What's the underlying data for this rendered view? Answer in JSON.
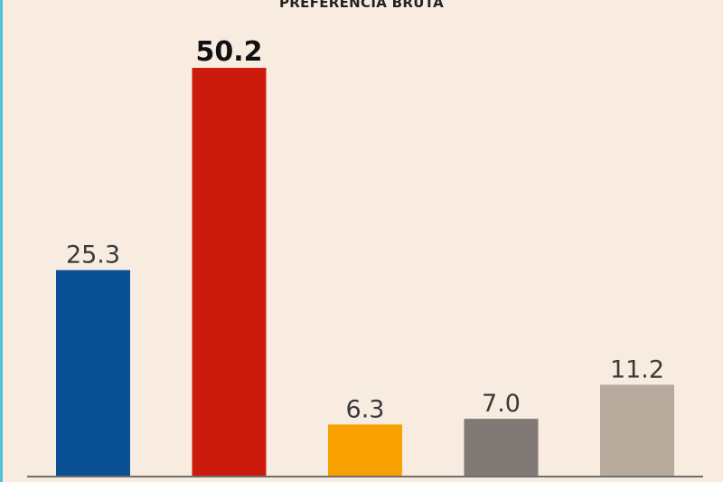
{
  "chart_data": {
    "type": "bar",
    "title": "PREFERENCIA BRUTA",
    "categories": [
      "",
      "",
      "",
      "",
      ""
    ],
    "values": [
      25.3,
      50.2,
      6.3,
      7.0,
      11.2
    ],
    "value_labels": [
      "25.3",
      "50.2",
      "6.3",
      "7.0",
      "11.2"
    ],
    "highlighted_index": 1,
    "colors": [
      "#0a5094",
      "#cc1b0d",
      "#f9a100",
      "#817975",
      "#b8ab9e"
    ],
    "ylim": [
      0,
      50.2
    ],
    "grid": false,
    "legend": "none"
  }
}
